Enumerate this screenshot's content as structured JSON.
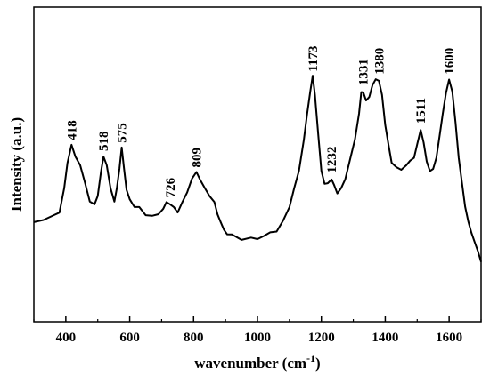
{
  "chart_data": {
    "type": "line",
    "title": "",
    "xlabel": "wavenumber (cm",
    "xlabel_sup": "-1",
    "xlabel_end": ")",
    "ylabel": "Intensity (a.u.)",
    "xlim": [
      300,
      1700
    ],
    "ylim": [
      0,
      100
    ],
    "grid": false,
    "y_ticks_shown": false,
    "x_ticks": [
      "400",
      "600",
      "800",
      "1000",
      "1200",
      "1400",
      "1600"
    ],
    "x_tick_values": [
      400,
      600,
      800,
      1000,
      1200,
      1400,
      1600
    ],
    "line_color": "#000000",
    "peak_labels": [
      "418",
      "518",
      "575",
      "726",
      "809",
      "1173",
      "1232",
      "1331",
      "1380",
      "1511",
      "1600"
    ],
    "peak_positions": [
      418,
      518,
      575,
      726,
      809,
      1173,
      1232,
      1331,
      1380,
      1511,
      1600
    ],
    "peak_intensities": [
      54,
      50,
      53,
      33,
      44,
      79,
      42,
      74,
      78,
      60,
      78
    ],
    "series": [
      {
        "x": [
          300,
          330,
          360,
          380,
          395,
          405,
          418,
          430,
          445,
          460,
          475,
          490,
          500,
          510,
          518,
          528,
          540,
          552,
          560,
          568,
          575,
          582,
          590,
          600,
          615,
          630,
          650,
          670,
          690,
          705,
          715,
          726,
          738,
          750,
          765,
          780,
          795,
          809,
          820,
          835,
          850,
          865,
          875,
          885,
          895,
          905,
          920,
          950,
          980,
          1000,
          1020,
          1040,
          1060,
          1080,
          1100,
          1115,
          1130,
          1145,
          1155,
          1165,
          1173,
          1180,
          1190,
          1200,
          1210,
          1220,
          1232,
          1240,
          1250,
          1262,
          1275,
          1290,
          1305,
          1318,
          1325,
          1331,
          1340,
          1350,
          1360,
          1370,
          1380,
          1390,
          1400,
          1410,
          1420,
          1435,
          1450,
          1465,
          1478,
          1490,
          1500,
          1511,
          1520,
          1530,
          1540,
          1550,
          1560,
          1570,
          1580,
          1590,
          1600,
          1610,
          1620,
          1630,
          1640,
          1650,
          1660,
          1670,
          1680,
          1690,
          1700
        ],
        "y": [
          26,
          27,
          28,
          30,
          38,
          48,
          54,
          50,
          47,
          40,
          34,
          32,
          36,
          44,
          50,
          47,
          38,
          34,
          38,
          46,
          53,
          46,
          38,
          34,
          32,
          31,
          29,
          28,
          29,
          31,
          33,
          33,
          31,
          30,
          33,
          37,
          42,
          44,
          42,
          38,
          36,
          33,
          29,
          26,
          23,
          22,
          21,
          20,
          20,
          20,
          21,
          22,
          23,
          26,
          32,
          38,
          45,
          56,
          65,
          74,
          79,
          73,
          58,
          45,
          40,
          40,
          42,
          39,
          37,
          38,
          42,
          49,
          56,
          66,
          73,
          74,
          70,
          72,
          76,
          78,
          78,
          72,
          62,
          54,
          48,
          46,
          45,
          47,
          48,
          50,
          54,
          60,
          55,
          48,
          45,
          45,
          50,
          57,
          66,
          73,
          78,
          74,
          62,
          50,
          40,
          32,
          26,
          22,
          19,
          15,
          12
        ]
      }
    ]
  }
}
